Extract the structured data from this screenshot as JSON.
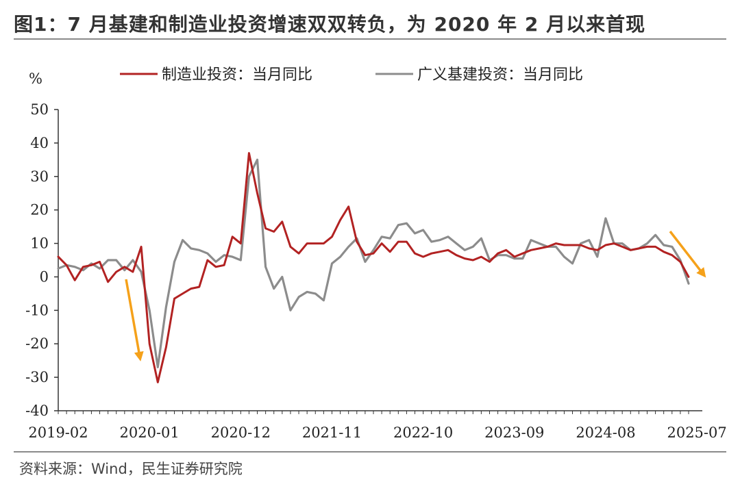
{
  "title": "图1：7 月基建和制造业投资增速双双转负，为 2020 年 2 月以来首现",
  "source": "资料来源：Wind，民生证券研究院",
  "chart_data": {
    "type": "line",
    "ylabel": "%",
    "ylim": [
      -40,
      50
    ],
    "yticks": [
      "50",
      "40",
      "30",
      "20",
      "10",
      "0",
      "-10",
      "-20",
      "-30",
      "-40"
    ],
    "ytick_values": [
      50,
      40,
      30,
      20,
      10,
      0,
      -10,
      -20,
      -30,
      -40
    ],
    "xtick_labels": [
      "2019-02",
      "2020-01",
      "2020-12",
      "2021-11",
      "2022-10",
      "2023-09",
      "2024-08",
      "2025-07"
    ],
    "xtick_index": [
      0,
      11,
      22,
      33,
      44,
      55,
      66,
      77
    ],
    "x_start": "2019-02",
    "legend_position": "top",
    "grid": false,
    "series": [
      {
        "name": "制造业投资：当月同比",
        "color": "#b22222",
        "values": [
          6,
          3.5,
          -1,
          3,
          3.5,
          4.5,
          -1.5,
          1.5,
          3,
          1.5,
          9,
          -20,
          -31.5,
          -21,
          -6.5,
          -5,
          -3.5,
          -3,
          5,
          3,
          3.5,
          12,
          10,
          37,
          25,
          14.5,
          13.5,
          16.5,
          9,
          7,
          10,
          10,
          10,
          12,
          17,
          21,
          10.5,
          6.5,
          7,
          10,
          7.5,
          10.5,
          10.5,
          7,
          6,
          7,
          7.5,
          8,
          6.5,
          5.5,
          5,
          6,
          4.5,
          7,
          8,
          6,
          7,
          8,
          8.5,
          9,
          10,
          9.5,
          9.5,
          9.5,
          8.5,
          8,
          9.5,
          10,
          9,
          8,
          8.5,
          9,
          9,
          7.5,
          6.5,
          4.5,
          0
        ]
      },
      {
        "name": "广义基建投资：当月同比",
        "color": "#8c8c8c",
        "values": [
          2.5,
          3.5,
          3,
          2,
          4,
          2.5,
          5,
          5,
          2,
          5,
          1.5,
          -10,
          -27,
          -9,
          4.5,
          11,
          8.5,
          8,
          7,
          4.5,
          6.5,
          6,
          5,
          30,
          35,
          3,
          -3.5,
          0,
          -10,
          -6,
          -4.5,
          -5,
          -7,
          4,
          6,
          9,
          11.5,
          4.5,
          8,
          12,
          11.5,
          15.5,
          16,
          13,
          14,
          10.5,
          11,
          12,
          10,
          8,
          9,
          11.5,
          5,
          6.5,
          6.5,
          5.5,
          5.5,
          11,
          10,
          9,
          9,
          6,
          4,
          10,
          11,
          6,
          17.5,
          10,
          10,
          8,
          8.5,
          10,
          12.5,
          9.5,
          9,
          5,
          -2
        ]
      }
    ]
  }
}
